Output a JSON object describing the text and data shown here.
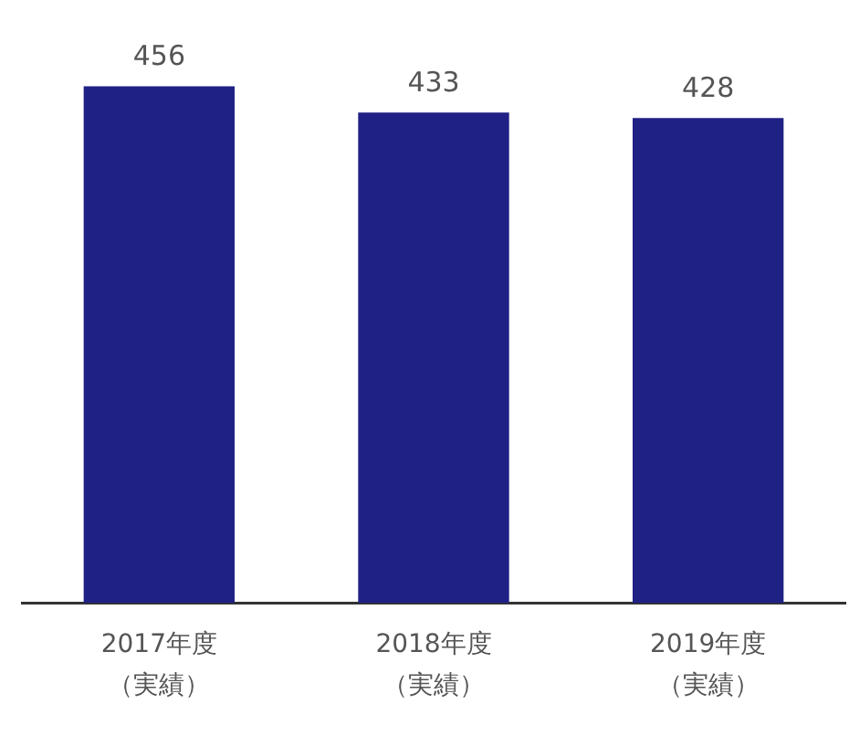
{
  "chart_data": {
    "type": "bar",
    "categories": [
      "2017年度（実績）",
      "2018年度（実績）",
      "2019年度（実績）"
    ],
    "values": [
      456,
      433,
      428
    ],
    "color": "#1f2185",
    "data_labels": true,
    "legend": false,
    "grid": false,
    "tick_labels": "x"
  }
}
